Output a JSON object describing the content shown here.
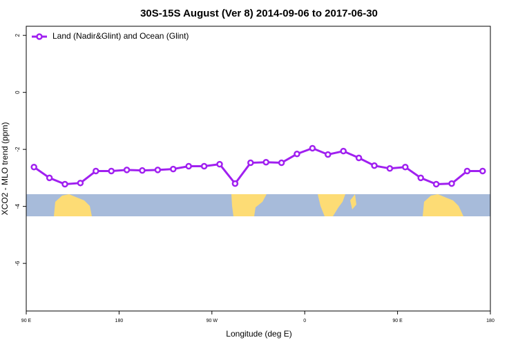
{
  "chart_data": {
    "type": "line",
    "title": "30S-15S August (Ver 8)   2014-09-06 to 2017-06-30",
    "x_label": "Longitude (deg E)",
    "y_label": "XCO2 - MLO trend (ppm)",
    "x": [
      97.5,
      112.5,
      127.5,
      142.5,
      157.5,
      172.5,
      187.5,
      202.5,
      217.5,
      232.5,
      247.5,
      262.5,
      277.5,
      292.5,
      307.5,
      322.5,
      337.5,
      352.5,
      367.5,
      382.5,
      397.5,
      412.5,
      427.5,
      442.5,
      457.5,
      472.5,
      487.5,
      502.5,
      517.5,
      532.5
    ],
    "series": [
      {
        "name": "Land (Nadir&Glint) and Ocean (Glint)",
        "color": "#a020f0",
        "values": [
          -2.62,
          -3.0,
          -3.22,
          -3.18,
          -2.76,
          -2.76,
          -2.72,
          -2.74,
          -2.72,
          -2.69,
          -2.59,
          -2.59,
          -2.52,
          -3.2,
          -2.47,
          -2.45,
          -2.47,
          -2.16,
          -1.96,
          -2.18,
          -2.06,
          -2.3,
          -2.57,
          -2.67,
          -2.62,
          -3.0,
          -3.22,
          -3.2,
          -2.76,
          -2.76
        ]
      }
    ],
    "xlim": [
      90,
      540
    ],
    "xticks": [
      {
        "value": 90,
        "label": "90 E"
      },
      {
        "value": 180,
        "label": "180"
      },
      {
        "value": 270,
        "label": "90 W"
      },
      {
        "value": 360,
        "label": "0"
      },
      {
        "value": 450,
        "label": "90 E"
      },
      {
        "value": 540,
        "label": "180"
      }
    ],
    "ylim": [
      -7.67,
      2.32
    ],
    "yticks": [
      2,
      0,
      -2,
      -4,
      -6
    ],
    "legend": "top-left"
  }
}
